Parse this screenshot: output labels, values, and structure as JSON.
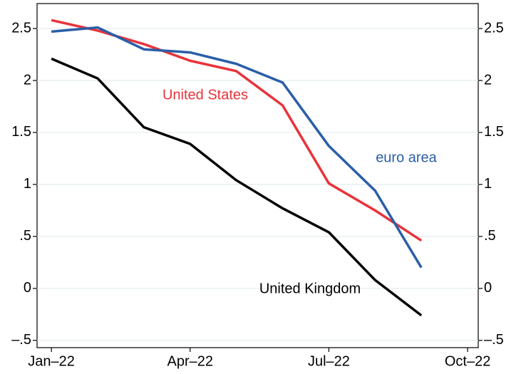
{
  "chart_data": {
    "type": "line",
    "x": [
      1,
      2,
      3,
      4,
      5,
      6,
      7,
      8,
      9
    ],
    "xlim": [
      0.69,
      10.23
    ],
    "xticks": [
      {
        "value": 1,
        "label": "Jan–22"
      },
      {
        "value": 4,
        "label": "Apr–22"
      },
      {
        "value": 7,
        "label": "Jul–22"
      },
      {
        "value": 10,
        "label": "Oct–22"
      }
    ],
    "ylim": [
      -0.57,
      2.74
    ],
    "yticks": [
      {
        "value": -0.5,
        "label": "–.5"
      },
      0,
      {
        "value": 0.5,
        "label": ".5"
      },
      1,
      1.5,
      2,
      2.5
    ],
    "y2lim": [
      -0.57,
      2.74
    ],
    "y2ticks": [
      {
        "value": -0.5,
        "label": "–.5"
      },
      0,
      {
        "value": 0.5,
        "label": ".5"
      },
      1,
      1.5,
      2,
      2.5
    ],
    "grid": true,
    "series": [
      {
        "name": "United States",
        "color": "#e8333a",
        "values": [
          2.58,
          2.48,
          2.35,
          2.19,
          2.09,
          1.76,
          1.01,
          0.75,
          0.46
        ]
      },
      {
        "name": "euro area",
        "color": "#2a5ea8",
        "values": [
          2.47,
          2.51,
          2.3,
          2.27,
          2.16,
          1.98,
          1.37,
          0.94,
          0.2
        ]
      },
      {
        "name": "United Kingdom",
        "color": "#000000",
        "values": [
          2.21,
          2.02,
          1.55,
          1.39,
          1.04,
          0.77,
          0.54,
          0.08,
          -0.26
        ]
      }
    ]
  }
}
